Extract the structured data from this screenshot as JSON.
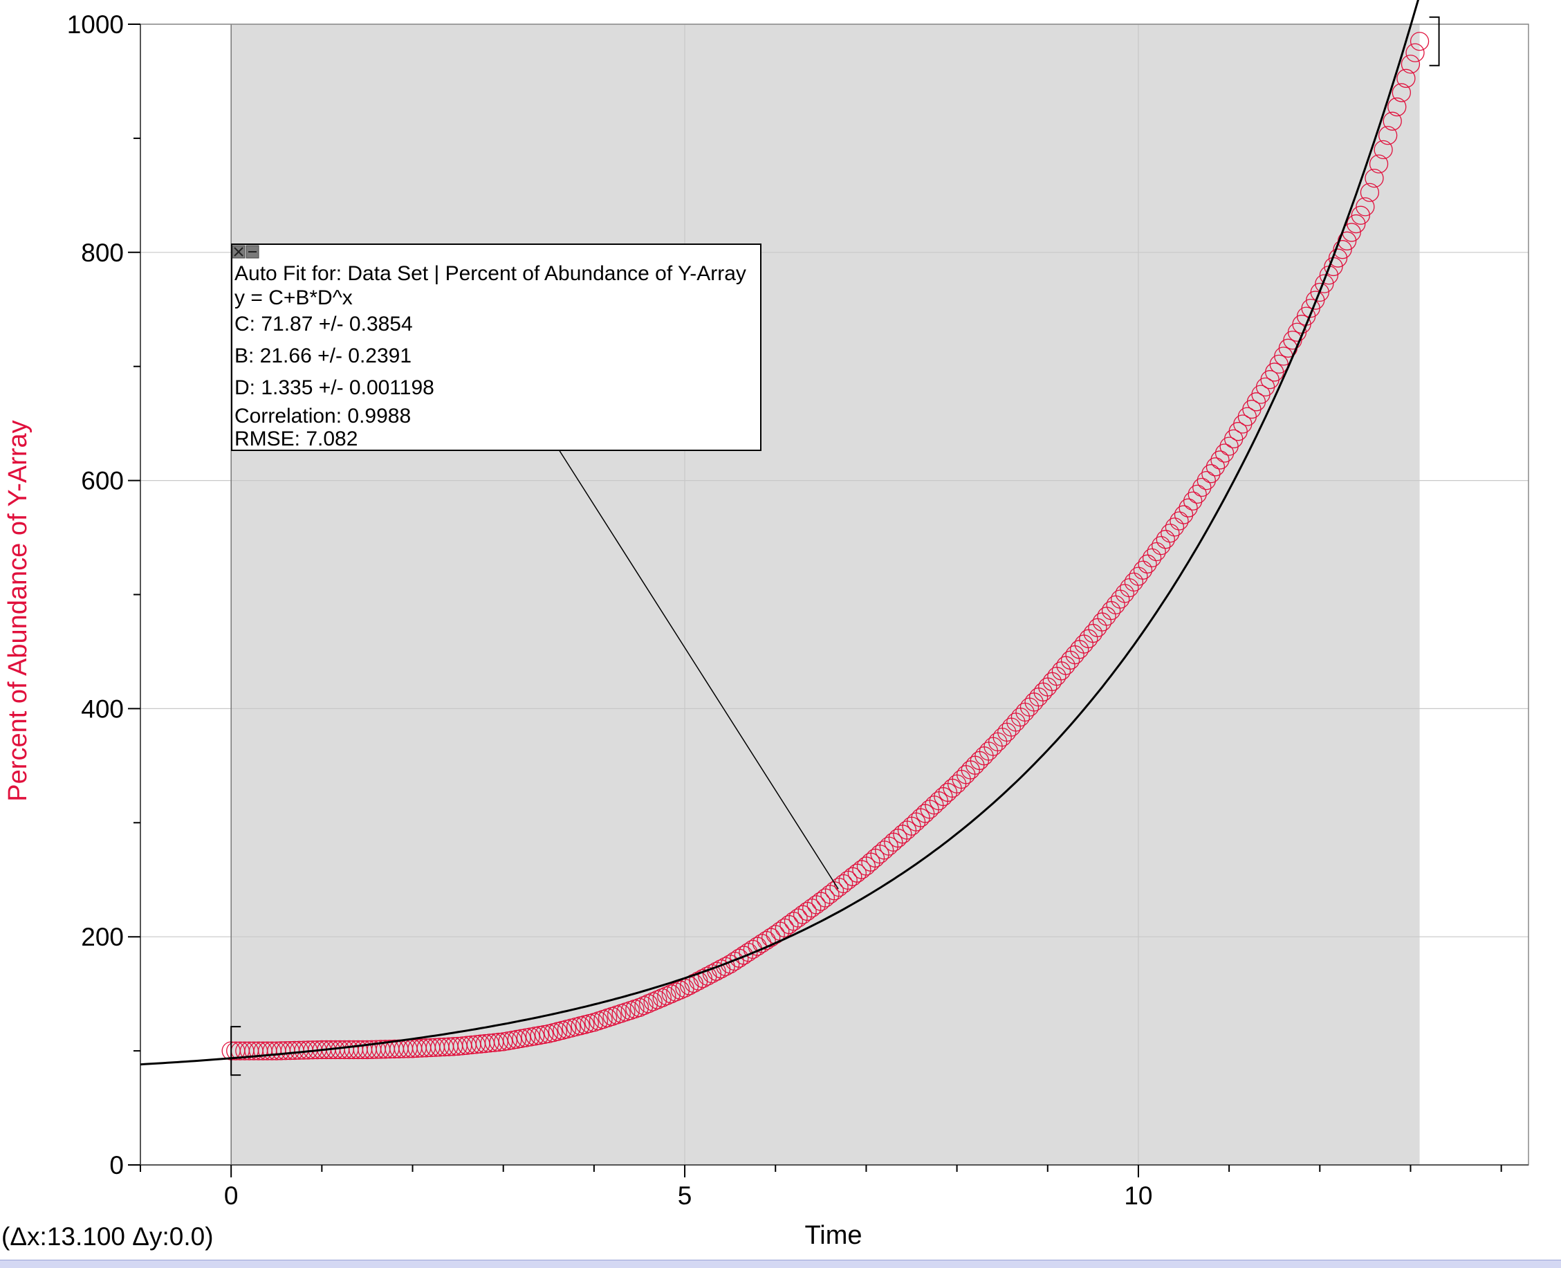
{
  "colors": {
    "data_series": "#e0103c",
    "fit_line": "#000000",
    "selection_shade": "#dcdcdc",
    "plot_background": "#ffffff",
    "grid": "#c8c8c8"
  },
  "status": {
    "delta_readout": "(Δx:13.100 Δy:0.0)"
  },
  "fit_box": {
    "title": "Auto Fit for: Data Set | Percent of Abundance of Y-Array",
    "equation": "y = C+B*D^x",
    "param_c": "C: 71.87 +/- 0.3854",
    "param_b": "B: 21.66 +/- 0.2391",
    "param_d": "D: 1.335 +/- 0.001198",
    "correlation": "Correlation: 0.9988",
    "rmse": "RMSE: 7.082",
    "close_icon": "close-icon",
    "minimize_icon": "minimize-icon"
  },
  "chart_data": {
    "type": "scatter",
    "title": "",
    "xlabel": "Time",
    "ylabel": "Percent of Abundance of Y-Array",
    "xlim": [
      -1,
      14.3
    ],
    "ylim": [
      0,
      1000
    ],
    "x_ticks": [
      0,
      5,
      10
    ],
    "x_tick_labels": [
      "0",
      "5",
      "10"
    ],
    "y_ticks": [
      0,
      200,
      400,
      600,
      800,
      1000
    ],
    "y_tick_labels": [
      "0",
      "200",
      "400",
      "600",
      "800",
      "1000"
    ],
    "grid": true,
    "legend": "none",
    "selection_range": [
      0,
      13.1
    ],
    "series": [
      {
        "marker": "open-circle",
        "x": [
          0,
          0.5,
          1.0,
          1.5,
          2.0,
          2.5,
          3.0,
          3.5,
          4.0,
          4.5,
          5.0,
          5.5,
          6.0,
          6.5,
          7.0,
          7.5,
          8.0,
          8.5,
          9.0,
          9.5,
          10.0,
          10.5,
          11.0,
          11.5,
          12.0,
          12.5,
          13.0,
          13.1
        ],
        "y": [
          100,
          100,
          101,
          101,
          102,
          104,
          108,
          115,
          125,
          138,
          155,
          176,
          202,
          231,
          262,
          297,
          334,
          375,
          419,
          466,
          516,
          570,
          630,
          695,
          765,
          840,
          965,
          985
        ]
      }
    ],
    "fit_curve": {
      "label": "y = C+B*D^x",
      "C": 71.87,
      "B": 21.66,
      "D": 1.335,
      "x_range": [
        -1,
        13.1
      ]
    }
  }
}
